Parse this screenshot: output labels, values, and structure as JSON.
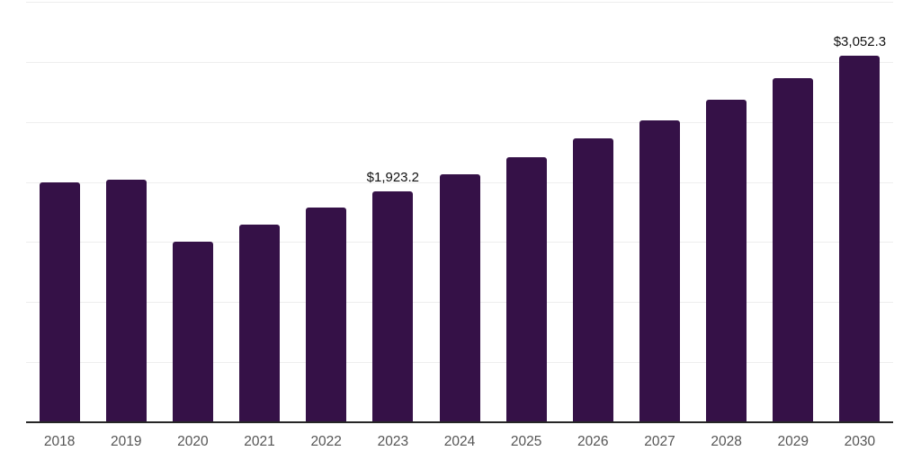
{
  "chart_data": {
    "type": "bar",
    "title": "",
    "categories": [
      "2018",
      "2019",
      "2020",
      "2021",
      "2022",
      "2023",
      "2024",
      "2025",
      "2026",
      "2027",
      "2028",
      "2029",
      "2030"
    ],
    "series": [
      {
        "name": "market-value-usd",
        "values": [
          1998,
          2021,
          1502,
          1649,
          1786,
          1923.2,
          2061,
          2206,
          2361,
          2513,
          2685,
          2865,
          3052.3
        ]
      }
    ],
    "data_labels": [
      {
        "category": "2023",
        "index": 5,
        "text": "$1,923.2"
      },
      {
        "category": "2030",
        "index": 12,
        "text": "$3,052.3"
      }
    ],
    "xlabel": "",
    "ylabel": "",
    "ylim": [
      0,
      3500
    ],
    "gridline_step": 500,
    "grid": true,
    "legend": "none"
  },
  "colors": {
    "background": "#ffffff",
    "bar": "#351147",
    "gridline": "#eeeeee",
    "axis_line": "#262626",
    "tick_label": "#555555",
    "value_label": "#111111"
  }
}
